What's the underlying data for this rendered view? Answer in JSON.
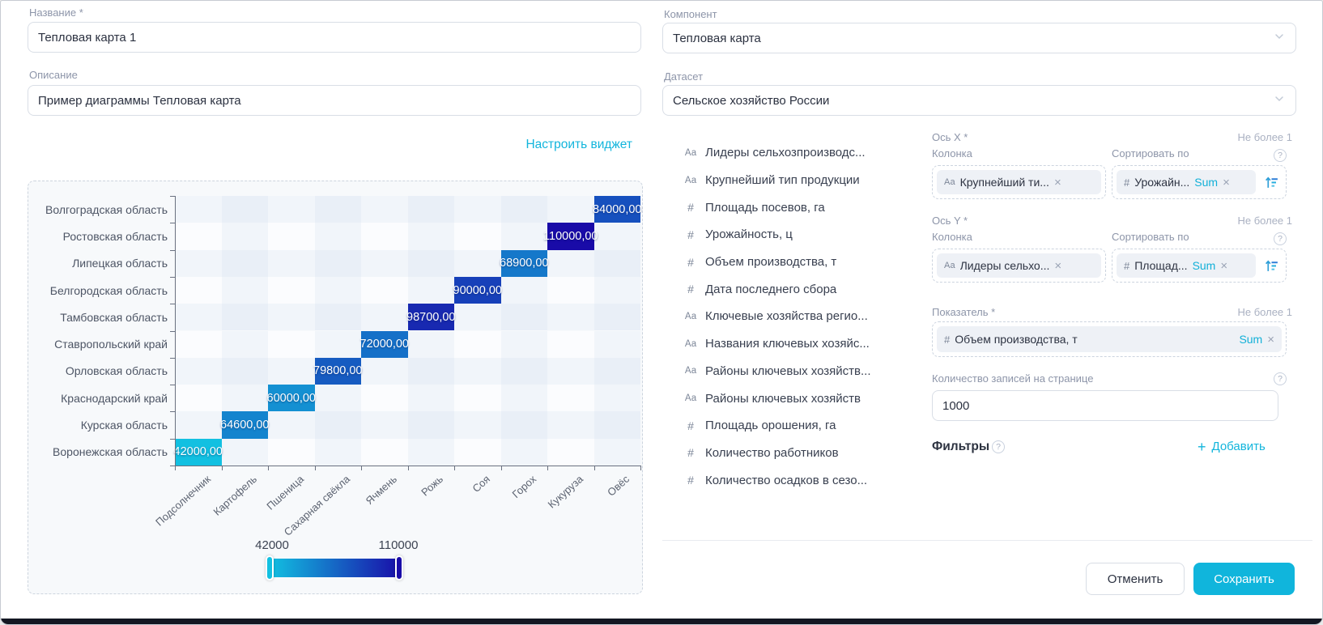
{
  "icons": {
    "help": "?",
    "close": "×",
    "plus": "+"
  },
  "accent_color": "#10b5dc",
  "form_left": {
    "name_label": "Название *",
    "name_value": "Тепловая карта 1",
    "description_label": "Описание",
    "description_value": "Пример диаграммы Тепловая карта",
    "configure_widget_label": "Настроить виджет"
  },
  "form_right": {
    "component_label": "Компонент",
    "component_value": "Тепловая карта",
    "dataset_label": "Датасет",
    "dataset_value": "Сельское хозяйство России"
  },
  "fields": [
    {
      "icon": "Аа",
      "label": "Лидеры сельхозпроизводс..."
    },
    {
      "icon": "Аа",
      "label": "Крупнейший тип продукции"
    },
    {
      "icon": "#",
      "label": "Площадь посевов, га"
    },
    {
      "icon": "#",
      "label": "Урожайность, ц"
    },
    {
      "icon": "#",
      "label": "Объем производства, т"
    },
    {
      "icon": "#",
      "label": "Дата последнего сбора"
    },
    {
      "icon": "Аа",
      "label": "Ключевые хозяйства регио..."
    },
    {
      "icon": "Аа",
      "label": "Названия ключевых хозяйс..."
    },
    {
      "icon": "Аа",
      "label": "Районы ключевых хозяйств..."
    },
    {
      "icon": "Аа",
      "label": "Районы ключевых хозяйств"
    },
    {
      "icon": "#",
      "label": "Площадь орошения, га"
    },
    {
      "icon": "#",
      "label": "Количество работников"
    },
    {
      "icon": "#",
      "label": "Количество осадков в сезо..."
    }
  ],
  "axis_x": {
    "title": "Ось X *",
    "limit": "Не более 1",
    "column_label": "Колонка",
    "sort_label": "Сортировать по",
    "column_chip": {
      "icon": "Аа",
      "label": "Крупнейший ти..."
    },
    "sort_chip": {
      "icon": "#",
      "label": "Урожайн...",
      "agg": "Sum"
    }
  },
  "axis_y": {
    "title": "Ось Y *",
    "limit": "Не более 1",
    "column_label": "Колонка",
    "sort_label": "Сортировать по",
    "column_chip": {
      "icon": "Аа",
      "label": "Лидеры сельхо..."
    },
    "sort_chip": {
      "icon": "#",
      "label": "Площад...",
      "agg": "Sum"
    }
  },
  "measure": {
    "title": "Показатель *",
    "limit": "Не более 1",
    "chip": {
      "icon": "#",
      "label": "Объем производства, т",
      "agg": "Sum"
    }
  },
  "page_size": {
    "label": "Количество записей на странице",
    "value": "1000"
  },
  "filters": {
    "label": "Фильтры",
    "add_label": "Добавить"
  },
  "footer": {
    "cancel_label": "Отменить",
    "save_label": "Сохранить"
  },
  "chart_data": {
    "type": "heatmap",
    "y_categories": [
      "Волгоградская область",
      "Ростовская область",
      "Липецкая область",
      "Белгородская область",
      "Тамбовская область",
      "Ставропольский край",
      "Орловская область",
      "Краснодарский край",
      "Курская область",
      "Воронежская область"
    ],
    "x_categories": [
      "Подсолнечник",
      "Картофель",
      "Пшеница",
      "Сахарная свёкла",
      "Ячмень",
      "Рожь",
      "Соя",
      "Горох",
      "Кукуруза",
      "Овёс"
    ],
    "cells": [
      {
        "row": 0,
        "col": 9,
        "value": 84000,
        "label": "84000,00"
      },
      {
        "row": 1,
        "col": 8,
        "value": 110000,
        "label": "110000,00"
      },
      {
        "row": 2,
        "col": 7,
        "value": 68900,
        "label": "68900,00"
      },
      {
        "row": 3,
        "col": 6,
        "value": 90000,
        "label": "90000,00"
      },
      {
        "row": 4,
        "col": 5,
        "value": 98700,
        "label": "98700,00"
      },
      {
        "row": 5,
        "col": 4,
        "value": 72000,
        "label": "72000,00"
      },
      {
        "row": 6,
        "col": 3,
        "value": 79800,
        "label": "79800,00"
      },
      {
        "row": 7,
        "col": 2,
        "value": 60000,
        "label": "60000,00"
      },
      {
        "row": 8,
        "col": 1,
        "value": 64600,
        "label": "64600,00"
      },
      {
        "row": 9,
        "col": 0,
        "value": 42000,
        "label": "42000,00"
      }
    ],
    "color_scale": {
      "min": 42000,
      "max": 110000,
      "min_color": "#12c0e1",
      "max_color": "#190ba8"
    },
    "legend": {
      "min_label": "42000",
      "max_label": "110000"
    },
    "grid": "checker",
    "legend_position": "bottom"
  }
}
